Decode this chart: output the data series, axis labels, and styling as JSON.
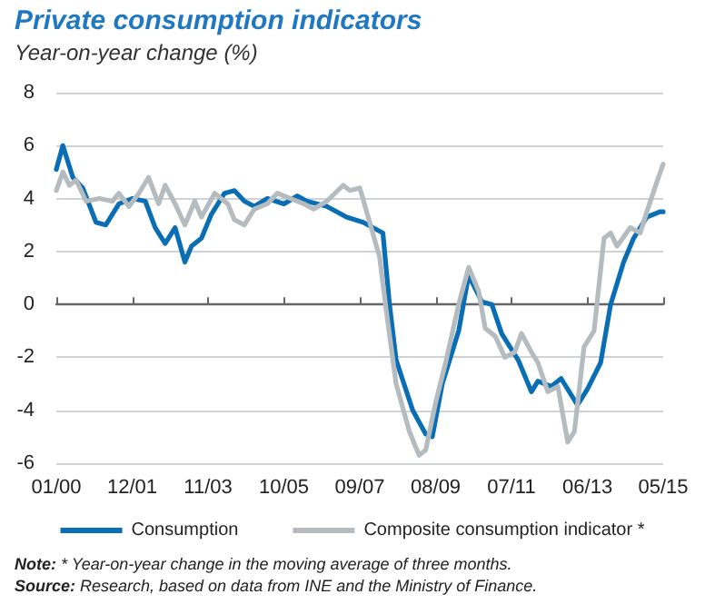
{
  "chart_data": {
    "type": "line",
    "title": "Private consumption indicators",
    "subtitle": "Year-on-year change (%)",
    "annotations": [
      "Note: * Year-on-year change in the moving average of three months.",
      "Source: Research, based on data from INE and the Ministry of Finance."
    ],
    "xlim": [
      "2000-01",
      "2015-05"
    ],
    "xticks": [
      {
        "value": "2000-01",
        "label": "01/00"
      },
      {
        "value": "2001-12",
        "label": "12/01"
      },
      {
        "value": "2003-11",
        "label": "11/03"
      },
      {
        "value": "2005-10",
        "label": "10/05"
      },
      {
        "value": "2007-09",
        "label": "09/07"
      },
      {
        "value": "2009-08",
        "label": "08/09"
      },
      {
        "value": "2011-07",
        "label": "07/11"
      },
      {
        "value": "2013-06",
        "label": "06/13"
      },
      {
        "value": "2015-05",
        "label": "05/15"
      }
    ],
    "ylim": [
      -6,
      8
    ],
    "yticks": [
      -6,
      -4,
      -2,
      0,
      2,
      4,
      6,
      8
    ],
    "grid": "y",
    "legend": "bottom",
    "marker": "none",
    "line_style": "solid",
    "series": [
      {
        "name": "Consumption",
        "color": "#0a6eb4",
        "x": [
          "2000-01",
          "2000-03",
          "2000-06",
          "2000-09",
          "2001-01",
          "2001-04",
          "2001-08",
          "2001-12",
          "2002-04",
          "2002-07",
          "2002-10",
          "2003-01",
          "2003-04",
          "2003-06",
          "2003-09",
          "2003-12",
          "2004-04",
          "2004-07",
          "2004-10",
          "2005-01",
          "2005-05",
          "2005-10",
          "2006-02",
          "2006-05",
          "2006-11",
          "2007-05",
          "2007-10",
          "2008-04",
          "2008-06",
          "2008-08",
          "2009-01",
          "2009-05",
          "2009-07",
          "2009-10",
          "2010-03",
          "2010-06",
          "2010-10",
          "2011-01",
          "2011-04",
          "2011-09",
          "2012-01",
          "2012-03",
          "2012-07",
          "2012-10",
          "2013-03",
          "2013-06",
          "2013-10",
          "2014-01",
          "2014-05",
          "2014-08",
          "2014-12",
          "2015-04",
          "2015-05"
        ],
        "values": [
          5.1,
          6.0,
          4.8,
          4.4,
          3.1,
          3.0,
          3.8,
          4.0,
          3.9,
          2.9,
          2.3,
          2.9,
          1.6,
          2.2,
          2.5,
          3.4,
          4.2,
          4.3,
          3.9,
          3.7,
          4.0,
          3.8,
          4.1,
          3.9,
          3.7,
          3.3,
          3.1,
          2.7,
          0.0,
          -2.1,
          -4.0,
          -4.9,
          -5.0,
          -3.0,
          -1.0,
          1.1,
          0.1,
          0.0,
          -1.1,
          -2.1,
          -3.3,
          -2.9,
          -3.1,
          -2.8,
          -3.8,
          -3.2,
          -2.2,
          0.0,
          1.6,
          2.5,
          3.3,
          3.5,
          3.5
        ]
      },
      {
        "name": "Composite consumption indicator *",
        "color": "#b4bcc0",
        "x": [
          "2000-01",
          "2000-03",
          "2000-05",
          "2000-07",
          "2000-10",
          "2001-02",
          "2001-06",
          "2001-08",
          "2001-11",
          "2002-02",
          "2002-05",
          "2002-08",
          "2002-10",
          "2003-01",
          "2003-04",
          "2003-07",
          "2003-09",
          "2004-01",
          "2004-05",
          "2004-07",
          "2004-10",
          "2005-01",
          "2005-05",
          "2005-08",
          "2005-12",
          "2006-04",
          "2006-07",
          "2006-11",
          "2007-04",
          "2007-06",
          "2007-09",
          "2007-12",
          "2008-03",
          "2008-05",
          "2008-08",
          "2008-12",
          "2009-03",
          "2009-05",
          "2009-08",
          "2009-11",
          "2010-03",
          "2010-06",
          "2010-09",
          "2010-11",
          "2011-02",
          "2011-05",
          "2011-08",
          "2011-10",
          "2012-01",
          "2012-03",
          "2012-06",
          "2012-09",
          "2012-12",
          "2013-02",
          "2013-05",
          "2013-08",
          "2013-11",
          "2014-01",
          "2014-03",
          "2014-07",
          "2014-10",
          "2014-12",
          "2015-03",
          "2015-05"
        ],
        "values": [
          4.3,
          5.0,
          4.5,
          4.7,
          3.9,
          4.0,
          3.9,
          4.2,
          3.7,
          4.2,
          4.8,
          3.8,
          4.5,
          3.8,
          3.0,
          3.9,
          3.3,
          4.2,
          3.8,
          3.2,
          3.0,
          3.6,
          3.8,
          4.2,
          4.0,
          3.8,
          3.6,
          3.9,
          4.5,
          4.3,
          4.4,
          3.1,
          1.8,
          -0.2,
          -3.0,
          -4.8,
          -5.7,
          -5.5,
          -3.7,
          -2.2,
          0.0,
          1.4,
          0.5,
          -0.9,
          -1.2,
          -2.0,
          -1.8,
          -1.1,
          -1.8,
          -2.2,
          -3.3,
          -3.1,
          -5.2,
          -4.8,
          -1.6,
          -1.0,
          2.5,
          2.7,
          2.2,
          2.9,
          2.7,
          3.5,
          4.6,
          5.3
        ]
      }
    ]
  }
}
